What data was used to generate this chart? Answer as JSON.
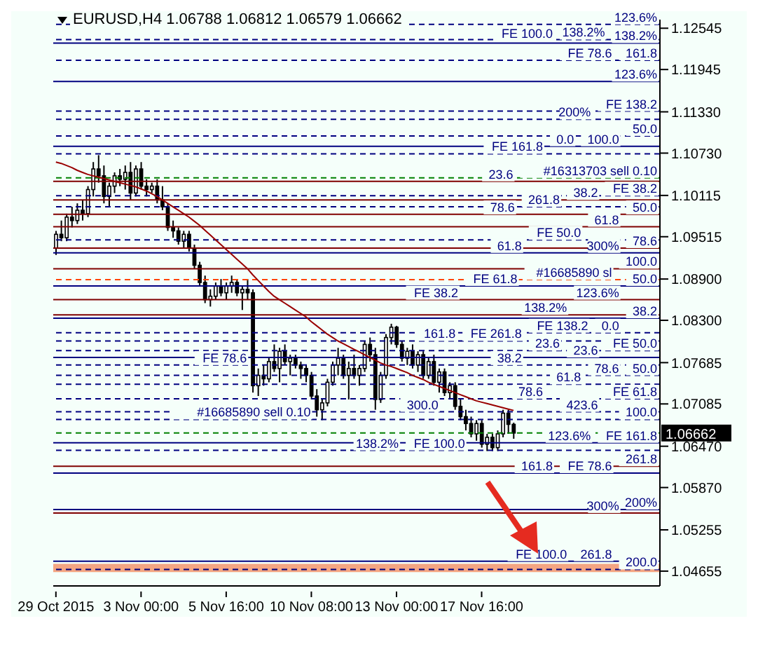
{
  "chart_data": {
    "type": "candlestick",
    "title": "EURUSD,H4  1.06788 1.06812 1.06579 1.06662",
    "categories": [
      "29 Oct 2015",
      null,
      null,
      null,
      null,
      null,
      null,
      null,
      null,
      null,
      null,
      null,
      null,
      null,
      null,
      null,
      "3 Nov 00:00",
      null,
      null,
      null,
      null,
      null,
      null,
      null,
      null,
      null,
      null,
      null,
      null,
      null,
      null,
      null,
      "5 Nov 16:00",
      null,
      null,
      null,
      null,
      null,
      null,
      null,
      null,
      null,
      null,
      null,
      null,
      null,
      null,
      null,
      "10 Nov 08:00",
      null,
      null,
      null,
      null,
      null,
      null,
      null,
      null,
      null,
      null,
      null,
      null,
      null,
      null,
      null,
      "13 Nov 00:00",
      null,
      null,
      null,
      null,
      null,
      null,
      null,
      null,
      null,
      null,
      null,
      null,
      null,
      null,
      null,
      "17 Nov 16:00",
      null,
      null,
      null,
      null,
      null,
      null,
      null,
      null,
      null,
      null,
      null,
      null,
      null,
      null,
      null,
      null,
      null,
      null,
      null,
      null,
      null,
      null,
      null,
      null,
      null,
      null,
      null,
      null,
      null,
      null,
      null,
      null,
      null
    ],
    "ohlc": [
      [
        1.0935,
        1.096,
        1.0925,
        1.0955
      ],
      [
        1.0955,
        1.0975,
        1.0945,
        1.095
      ],
      [
        1.095,
        1.0985,
        1.0945,
        1.098
      ],
      [
        1.098,
        1.0995,
        1.0965,
        1.0975
      ],
      [
        1.0975,
        1.1,
        1.097,
        1.099
      ],
      [
        1.099,
        1.1005,
        1.0975,
        1.0985
      ],
      [
        1.0985,
        1.1025,
        1.098,
        1.102
      ],
      [
        1.102,
        1.106,
        1.101,
        1.105
      ],
      [
        1.105,
        1.107,
        1.103,
        1.104
      ],
      [
        1.104,
        1.1055,
        1.1,
        1.101
      ],
      [
        1.101,
        1.103,
        1.0995,
        1.1025
      ],
      [
        1.1025,
        1.1045,
        1.1015,
        1.104
      ],
      [
        1.104,
        1.105,
        1.1025,
        1.1035
      ],
      [
        1.1035,
        1.1055,
        1.102,
        1.1045
      ],
      [
        1.1045,
        1.106,
        1.1005,
        1.1015
      ],
      [
        1.1015,
        1.1055,
        1.101,
        1.105
      ],
      [
        1.105,
        1.106,
        1.102,
        1.1025
      ],
      [
        1.1025,
        1.1035,
        1.101,
        1.102
      ],
      [
        1.102,
        1.103,
        1.1015,
        1.1025
      ],
      [
        1.1025,
        1.1035,
        1.1,
        1.1005
      ],
      [
        1.1005,
        1.1025,
        1.099,
        1.0995
      ],
      [
        1.0995,
        1.1,
        1.096,
        1.0965
      ],
      [
        1.0965,
        1.0975,
        1.095,
        1.096
      ],
      [
        1.096,
        1.0965,
        1.094,
        1.0945
      ],
      [
        1.0945,
        1.096,
        1.0935,
        1.0955
      ],
      [
        1.0955,
        1.096,
        1.093,
        1.0935
      ],
      [
        1.0935,
        1.094,
        1.0905,
        1.091
      ],
      [
        1.091,
        1.0915,
        1.088,
        1.0885
      ],
      [
        1.0885,
        1.0895,
        1.0855,
        1.086
      ],
      [
        1.086,
        1.0875,
        1.085,
        1.0865
      ],
      [
        1.0865,
        1.0885,
        1.086,
        1.088
      ],
      [
        1.088,
        1.089,
        1.0865,
        1.087
      ],
      [
        1.087,
        1.0885,
        1.086,
        1.088
      ],
      [
        1.088,
        1.0895,
        1.087,
        1.0885
      ],
      [
        1.0885,
        1.089,
        1.0865,
        1.087
      ],
      [
        1.087,
        1.088,
        1.0845,
        1.0875
      ],
      [
        1.0875,
        1.089,
        1.086,
        1.087
      ],
      [
        1.087,
        1.0875,
        1.0725,
        1.0735
      ],
      [
        1.0735,
        1.076,
        1.072,
        1.075
      ],
      [
        1.075,
        1.0765,
        1.0735,
        1.0745
      ],
      [
        1.0745,
        1.0775,
        1.074,
        1.077
      ],
      [
        1.077,
        1.0795,
        1.0755,
        1.076
      ],
      [
        1.076,
        1.079,
        1.074,
        1.0785
      ],
      [
        1.0785,
        1.0795,
        1.0765,
        1.077
      ],
      [
        1.077,
        1.078,
        1.075,
        1.0775
      ],
      [
        1.0775,
        1.078,
        1.076,
        1.0765
      ],
      [
        1.0765,
        1.077,
        1.0745,
        1.076
      ],
      [
        1.076,
        1.0765,
        1.074,
        1.075
      ],
      [
        1.075,
        1.0755,
        1.0715,
        1.072
      ],
      [
        1.072,
        1.073,
        1.069,
        1.07
      ],
      [
        1.07,
        1.0715,
        1.0685,
        1.071
      ],
      [
        1.071,
        1.0745,
        1.0705,
        1.074
      ],
      [
        1.074,
        1.077,
        1.0735,
        1.0765
      ],
      [
        1.0765,
        1.079,
        1.075,
        1.0775
      ],
      [
        1.0775,
        1.078,
        1.0745,
        1.075
      ],
      [
        1.075,
        1.077,
        1.0715,
        1.076
      ],
      [
        1.076,
        1.078,
        1.0745,
        1.075
      ],
      [
        1.075,
        1.0765,
        1.0735,
        1.076
      ],
      [
        1.076,
        1.08,
        1.0755,
        1.0795
      ],
      [
        1.0795,
        1.0805,
        1.077,
        1.078
      ],
      [
        1.078,
        1.079,
        1.07,
        1.0715
      ],
      [
        1.0715,
        1.0755,
        1.071,
        1.075
      ],
      [
        1.075,
        1.081,
        1.0745,
        1.0805
      ],
      [
        1.0805,
        1.0825,
        1.0795,
        1.082
      ],
      [
        1.082,
        1.0822,
        1.079,
        1.0795
      ],
      [
        1.0795,
        1.08,
        1.077,
        1.0775
      ],
      [
        1.0775,
        1.079,
        1.0765,
        1.0785
      ],
      [
        1.0785,
        1.0795,
        1.076,
        1.0765
      ],
      [
        1.0765,
        1.0785,
        1.0755,
        1.078
      ],
      [
        1.078,
        1.0785,
        1.0745,
        1.075
      ],
      [
        1.075,
        1.0775,
        1.0745,
        1.077
      ],
      [
        1.077,
        1.078,
        1.0735,
        1.074
      ],
      [
        1.074,
        1.076,
        1.0725,
        1.0755
      ],
      [
        1.0755,
        1.076,
        1.072,
        1.0725
      ],
      [
        1.0725,
        1.074,
        1.0715,
        1.0735
      ],
      [
        1.0735,
        1.074,
        1.07,
        1.0705
      ],
      [
        1.0705,
        1.0715,
        1.0685,
        1.069
      ],
      [
        1.069,
        1.07,
        1.067,
        1.068
      ],
      [
        1.068,
        1.069,
        1.066,
        1.0665
      ],
      [
        1.0665,
        1.0685,
        1.0655,
        1.068
      ],
      [
        1.068,
        1.0685,
        1.0645,
        1.065
      ],
      [
        1.065,
        1.0665,
        1.064,
        1.066
      ],
      [
        1.066,
        1.0665,
        1.064,
        1.0645
      ],
      [
        1.0645,
        1.067,
        1.064,
        1.0665
      ],
      [
        1.0665,
        1.07,
        1.066,
        1.0695
      ],
      [
        1.0695,
        1.07,
        1.0665,
        1.06788
      ],
      [
        1.06788,
        1.06812,
        1.06579,
        1.06662
      ],
      null,
      null,
      null,
      null,
      null,
      null,
      null,
      null,
      null,
      null,
      null,
      null,
      null,
      null,
      null,
      null,
      null,
      null,
      null,
      null,
      null,
      null,
      null,
      null,
      null,
      null,
      null
    ],
    "series": [
      {
        "type": "line",
        "color": "#990000",
        "values": [
          1.106,
          1.1058,
          1.1055,
          1.1052,
          1.1048,
          1.1045,
          1.1042,
          1.104,
          1.1038,
          1.1036,
          1.1034,
          1.1032,
          1.103,
          1.1028,
          1.1026,
          1.1024,
          1.1021,
          1.1018,
          1.1014,
          1.101,
          1.1005,
          1.1,
          1.0995,
          1.099,
          1.0985,
          1.098,
          1.0974,
          1.0968,
          1.0961,
          1.0954,
          1.0947,
          1.094,
          1.0933,
          1.0926,
          1.0919,
          1.0912,
          1.0905,
          1.0896,
          1.0888,
          1.088,
          1.0872,
          1.0865,
          1.086,
          1.0855,
          1.085,
          1.0845,
          1.084,
          1.0835,
          1.0828,
          1.0822,
          1.0816,
          1.081,
          1.0805,
          1.08,
          1.0796,
          1.0792,
          1.0788,
          1.0784,
          1.078,
          1.0776,
          1.0772,
          1.0768,
          1.0765,
          1.0763,
          1.076,
          1.0757,
          1.0754,
          1.075,
          1.0747,
          1.0744,
          1.074,
          1.0737,
          1.0734,
          1.0731,
          1.0728,
          1.0725,
          1.0722,
          1.0719,
          1.0716,
          1.0713,
          1.0711,
          1.0709,
          1.0707,
          1.0705,
          1.0703,
          1.0701,
          1.0699,
          null,
          null,
          null,
          null,
          null,
          null,
          null,
          null,
          null,
          null,
          null,
          null,
          null,
          null,
          null,
          null,
          null,
          null,
          null,
          null,
          null,
          null,
          null,
          null,
          null,
          null,
          null
        ]
      }
    ],
    "ylim": [
      1.0444,
      1.1267
    ],
    "yticks": [
      1.12545,
      1.11945,
      {
        "value": 1.1133,
        "label": "1.11330"
      },
      {
        "value": 1.1073,
        "label": "1.10730"
      },
      1.10115,
      1.09515,
      {
        "value": 1.089,
        "label": "1.08900"
      },
      {
        "value": 1.083,
        "label": "1.08300"
      },
      1.07685,
      1.07085,
      {
        "value": 1.0647,
        "label": "1.06470"
      },
      {
        "value": 1.0587,
        "label": "1.05870"
      },
      1.05255,
      1.04655
    ],
    "bands": [
      {
        "axis": "y",
        "from": 1.0464,
        "to": 1.0476,
        "color": "#f4a582"
      }
    ],
    "ref_lines": [
      {
        "axis": "y",
        "value": 1.126,
        "color": "#000080",
        "line_style": "dashed"
      },
      {
        "axis": "y",
        "value": 1.1238,
        "color": "#000080",
        "line_style": "dashed"
      },
      {
        "axis": "y",
        "value": 1.1233,
        "color": "#000080",
        "line_style": "solid"
      },
      {
        "axis": "y",
        "value": 1.1208,
        "color": "#000080",
        "line_style": "dashed"
      },
      {
        "axis": "y",
        "value": 1.1177,
        "color": "#000080",
        "line_style": "solid"
      },
      {
        "axis": "y",
        "value": 1.1134,
        "color": "#000080",
        "line_style": "dashed"
      },
      {
        "axis": "y",
        "value": 1.1122,
        "color": "#000080",
        "line_style": "dashed"
      },
      {
        "axis": "y",
        "value": 1.1098,
        "color": "#000080",
        "line_style": "dashed"
      },
      {
        "axis": "y",
        "value": 1.1083,
        "color": "#000080",
        "line_style": "solid"
      },
      {
        "axis": "y",
        "value": 1.1072,
        "color": "#000080",
        "line_style": "dashed"
      },
      {
        "axis": "y",
        "value": 1.1037,
        "color": "#008000",
        "line_style": "dashed"
      },
      {
        "axis": "y",
        "value": 1.1032,
        "color": "#800000",
        "line_style": "solid"
      },
      {
        "axis": "y",
        "value": 1.1011,
        "color": "#000080",
        "line_style": "dashed"
      },
      {
        "axis": "y",
        "value": 1.1005,
        "color": "#800000",
        "line_style": "solid"
      },
      {
        "axis": "y",
        "value": 1.0995,
        "color": "#000080",
        "line_style": "dashed"
      },
      {
        "axis": "y",
        "value": 1.0984,
        "color": "#800000",
        "line_style": "solid"
      },
      {
        "axis": "y",
        "value": 1.0966,
        "color": "#800000",
        "line_style": "solid"
      },
      {
        "axis": "y",
        "value": 1.0947,
        "color": "#000080",
        "line_style": "dashed"
      },
      {
        "axis": "y",
        "value": 1.0935,
        "color": "#800000",
        "line_style": "solid"
      },
      {
        "axis": "y",
        "value": 1.0928,
        "color": "#000080",
        "line_style": "solid"
      },
      {
        "axis": "y",
        "value": 1.0905,
        "color": "#800000",
        "line_style": "solid"
      },
      {
        "axis": "y",
        "value": 1.0889,
        "color": "#ff4500",
        "line_style": "dashed"
      },
      {
        "axis": "y",
        "value": 1.088,
        "color": "#000080",
        "line_style": "solid"
      },
      {
        "axis": "y",
        "value": 1.086,
        "color": "#800000",
        "line_style": "solid"
      },
      {
        "axis": "y",
        "value": 1.0838,
        "color": "#800000",
        "line_style": "solid"
      },
      {
        "axis": "y",
        "value": 1.0833,
        "color": "#000080",
        "line_style": "solid"
      },
      {
        "axis": "y",
        "value": 1.0812,
        "color": "#000080",
        "line_style": "dashed"
      },
      {
        "axis": "y",
        "value": 1.08,
        "color": "#000080",
        "line_style": "dashed"
      },
      {
        "axis": "y",
        "value": 1.0786,
        "color": "#000080",
        "line_style": "dashed"
      },
      {
        "axis": "y",
        "value": 1.0776,
        "color": "#000080",
        "line_style": "solid"
      },
      {
        "axis": "y",
        "value": 1.0765,
        "color": "#000080",
        "line_style": "dashed"
      },
      {
        "axis": "y",
        "value": 1.075,
        "color": "#000080",
        "line_style": "dashed"
      },
      {
        "axis": "y",
        "value": 1.0737,
        "color": "#000080",
        "line_style": "dashed"
      },
      {
        "axis": "y",
        "value": 1.0716,
        "color": "#000080",
        "line_style": "dashed"
      },
      {
        "axis": "y",
        "value": 1.0697,
        "color": "#000080",
        "line_style": "dashed"
      },
      {
        "axis": "y",
        "value": 1.0686,
        "color": "#000080",
        "line_style": "dashed"
      },
      {
        "axis": "y",
        "value": 1.06662,
        "label": "1.06662",
        "color": "#008000",
        "line_style": "dashed"
      },
      {
        "axis": "y",
        "value": 1.0652,
        "color": "#000080",
        "line_style": "solid"
      },
      {
        "axis": "y",
        "value": 1.0641,
        "color": "#000080",
        "line_style": "dashed"
      },
      {
        "axis": "y",
        "value": 1.0618,
        "color": "#800000",
        "line_style": "solid"
      },
      {
        "axis": "y",
        "value": 1.0608,
        "color": "#000080",
        "line_style": "solid"
      },
      {
        "axis": "y",
        "value": 1.0555,
        "color": "#000080",
        "line_style": "solid"
      },
      {
        "axis": "y",
        "value": 1.055,
        "color": "#800000",
        "line_style": "solid"
      },
      {
        "axis": "y",
        "value": 1.048,
        "color": "#000080",
        "line_style": "solid"
      },
      {
        "axis": "y",
        "value": 1.0468,
        "color": "#000080",
        "line_style": "dashed"
      }
    ],
    "annotations": [
      {
        "text": "123.6%",
        "y": 1.126
      },
      {
        "text": "138.2%",
        "y": 1.1238
      },
      {
        "text": "138.2%",
        "y": 1.1233
      },
      {
        "text": "FE 100.0",
        "y": 1.1236
      },
      {
        "text": "161.8",
        "y": 1.1208
      },
      {
        "text": "FE 78.6",
        "y": 1.1208
      },
      {
        "text": "123.6%",
        "y": 1.1177
      },
      {
        "text": "FE 138.2",
        "y": 1.1134
      },
      {
        "text": "200%",
        "y": 1.1122
      },
      {
        "text": "50.0",
        "y": 1.1098
      },
      {
        "text": "100.0",
        "y": 1.1083
      },
      {
        "text": "0.0",
        "y": 1.1083
      },
      {
        "text": "FE 161.8",
        "y": 1.1072
      },
      {
        "text": "#16313703 sell 0.10",
        "y": 1.1037
      },
      {
        "text": "23.6",
        "y": 1.1032
      },
      {
        "text": "FE 38.2",
        "y": 1.1011
      },
      {
        "text": "38.2",
        "y": 1.1005
      },
      {
        "text": "261.8",
        "y": 1.0995
      },
      {
        "text": "50.0",
        "y": 1.0984
      },
      {
        "text": "78.6",
        "y": 1.0984
      },
      {
        "text": "61.8",
        "y": 1.0966
      },
      {
        "text": "FE 50.0",
        "y": 1.0947
      },
      {
        "text": "78.6",
        "y": 1.0935
      },
      {
        "text": "300%",
        "y": 1.0928
      },
      {
        "text": "61.8",
        "y": 1.0928
      },
      {
        "text": "100.0",
        "y": 1.0905
      },
      {
        "text": "#16685890 sl",
        "y": 1.0889
      },
      {
        "text": "50.0",
        "y": 1.088
      },
      {
        "text": "FE 61.8",
        "y": 1.088
      },
      {
        "text": "123.6%",
        "y": 1.086
      },
      {
        "text": "FE 38.2",
        "y": 1.086
      },
      {
        "text": "138.2%",
        "y": 1.0838
      },
      {
        "text": "38.2",
        "y": 1.0833
      },
      {
        "text": "0.0",
        "y": 1.0812
      },
      {
        "text": "FE 138.2",
        "y": 1.0812
      },
      {
        "text": "FE 261.8",
        "y": 1.08
      },
      {
        "text": "161.8",
        "y": 1.08
      },
      {
        "text": "FE 50.0",
        "y": 1.0786
      },
      {
        "text": "23.6",
        "y": 1.0776
      },
      {
        "text": "23.6",
        "y": 1.0786
      },
      {
        "text": "38.2",
        "y": 1.0765
      },
      {
        "text": "FE 78.6",
        "y": 1.0765
      },
      {
        "text": "50.0",
        "y": 1.075
      },
      {
        "text": "78.6",
        "y": 1.075
      },
      {
        "text": "61.8",
        "y": 1.0737
      },
      {
        "text": "FE 61.8",
        "y": 1.0716
      },
      {
        "text": "78.6",
        "y": 1.0716
      },
      {
        "text": "423.6",
        "y": 1.0697
      },
      {
        "text": "300.0",
        "y": 1.0697
      },
      {
        "text": "100.0",
        "y": 1.0686
      },
      {
        "text": "#16685890 sell 0.10",
        "y": 1.0686
      },
      {
        "text": "FE 161.8",
        "y": 1.0652
      },
      {
        "text": "123.6%",
        "y": 1.0652
      },
      {
        "text": "FE 100.0",
        "y": 1.0641
      },
      {
        "text": "138.2%",
        "y": 1.0641
      },
      {
        "text": "261.8",
        "y": 1.0618
      },
      {
        "text": "FE 78.6",
        "y": 1.0608
      },
      {
        "text": "161.8",
        "y": 1.0608
      },
      {
        "text": "200%",
        "y": 1.0555
      },
      {
        "text": "300%",
        "y": 1.055
      },
      {
        "text": "200.0",
        "y": 1.0468
      },
      {
        "text": "261.8",
        "y": 1.048
      },
      {
        "text": "FE 100.0",
        "y": 1.048
      }
    ],
    "grid": false,
    "legend": false
  }
}
